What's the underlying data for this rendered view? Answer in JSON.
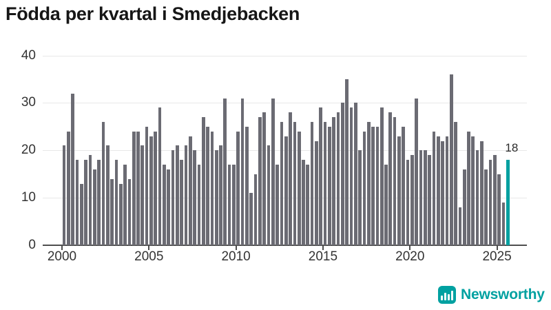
{
  "header": {
    "title": "Födda per kvartal i Smedjebacken"
  },
  "chart_data": {
    "type": "bar",
    "title": "Födda per kvartal i Smedjebacken",
    "x_unit": "quarter",
    "start_quarter": "2000 Q1",
    "end_quarter": "2025 Q3",
    "x_tick_labels": [
      "2000",
      "2005",
      "2010",
      "2015",
      "2020",
      "2025"
    ],
    "y_ticks": [
      0,
      10,
      20,
      30,
      40
    ],
    "ylim": [
      0,
      41
    ],
    "grid": "horizontal",
    "values": [
      21,
      24,
      32,
      18,
      13,
      18,
      19,
      16,
      18,
      26,
      21,
      14,
      18,
      13,
      17,
      14,
      24,
      24,
      21,
      25,
      23,
      24,
      29,
      17,
      16,
      20,
      21,
      18,
      21,
      23,
      20,
      17,
      27,
      25,
      24,
      20,
      21,
      31,
      17,
      17,
      24,
      31,
      25,
      11,
      15,
      27,
      28,
      21,
      31,
      17,
      26,
      23,
      28,
      26,
      24,
      18,
      17,
      26,
      22,
      29,
      26,
      25,
      27,
      28,
      30,
      35,
      29,
      30,
      20,
      24,
      26,
      25,
      25,
      29,
      17,
      28,
      27,
      23,
      25,
      18,
      19,
      31,
      20,
      20,
      19,
      24,
      23,
      22,
      23,
      36,
      26,
      8,
      16,
      24,
      23,
      20,
      22,
      16,
      18,
      19,
      15,
      9,
      18
    ],
    "highlight": {
      "index": 102,
      "label": "18"
    },
    "colors": {
      "bar": "#6b6b73",
      "highlight": "#00a0a0",
      "grid": "#e8e8e8",
      "axis": "#4d4d4d",
      "tick_text": "#333333",
      "title_text": "#161616"
    }
  },
  "footer": {
    "logo_text": "Newsworthy",
    "logo_color": "#00a1a1",
    "logo_icon": "bar-chart-icon",
    "logo_icon_bar_heights": [
      7,
      11,
      9,
      14
    ]
  }
}
